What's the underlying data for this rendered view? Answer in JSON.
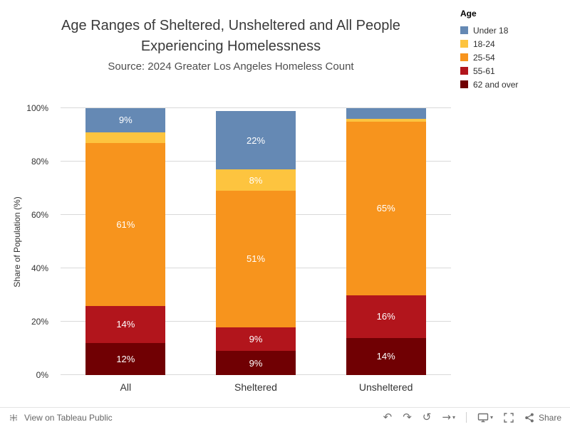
{
  "title": {
    "line1": "Age Ranges of Sheltered, Unsheltered and All People",
    "line2": "Experiencing Homelessness",
    "source": "Source: 2024 Greater Los Angeles Homeless Count"
  },
  "legend": {
    "title": "Age",
    "items": [
      {
        "label": "Under 18",
        "color": "#6589b4"
      },
      {
        "label": "18-24",
        "color": "#fdc43f"
      },
      {
        "label": "25-54",
        "color": "#f7941d"
      },
      {
        "label": "55-61",
        "color": "#b2151c"
      },
      {
        "label": "62 and over",
        "color": "#700003"
      }
    ]
  },
  "chart_data": {
    "type": "bar",
    "stacked": true,
    "categories": [
      "All",
      "Sheltered",
      "Unsheltered"
    ],
    "series": [
      {
        "name": "62 and over",
        "color": "#700003",
        "values": [
          12,
          9,
          14
        ],
        "labels": [
          "12%",
          "9%",
          "14%"
        ]
      },
      {
        "name": "55-61",
        "color": "#b2151c",
        "values": [
          14,
          9,
          16
        ],
        "labels": [
          "14%",
          "9%",
          "16%"
        ]
      },
      {
        "name": "25-54",
        "color": "#f7941d",
        "values": [
          61,
          51,
          65
        ],
        "labels": [
          "61%",
          "51%",
          "65%"
        ]
      },
      {
        "name": "18-24",
        "color": "#fdc43f",
        "values": [
          4,
          8,
          1
        ],
        "labels": [
          "",
          "8%",
          ""
        ]
      },
      {
        "name": "Under 18",
        "color": "#6589b4",
        "values": [
          9,
          22,
          4
        ],
        "labels": [
          "9%",
          "22%",
          ""
        ]
      }
    ],
    "ylabel": "Share of Population (%)",
    "yticks": [
      "0%",
      "20%",
      "40%",
      "60%",
      "80%",
      "100%"
    ],
    "ylim": [
      0,
      100
    ],
    "grid": true,
    "legend_position": "top-right",
    "legend_title": "Age"
  },
  "toolbar": {
    "view_label": "View on Tableau Public",
    "share_label": "Share"
  }
}
